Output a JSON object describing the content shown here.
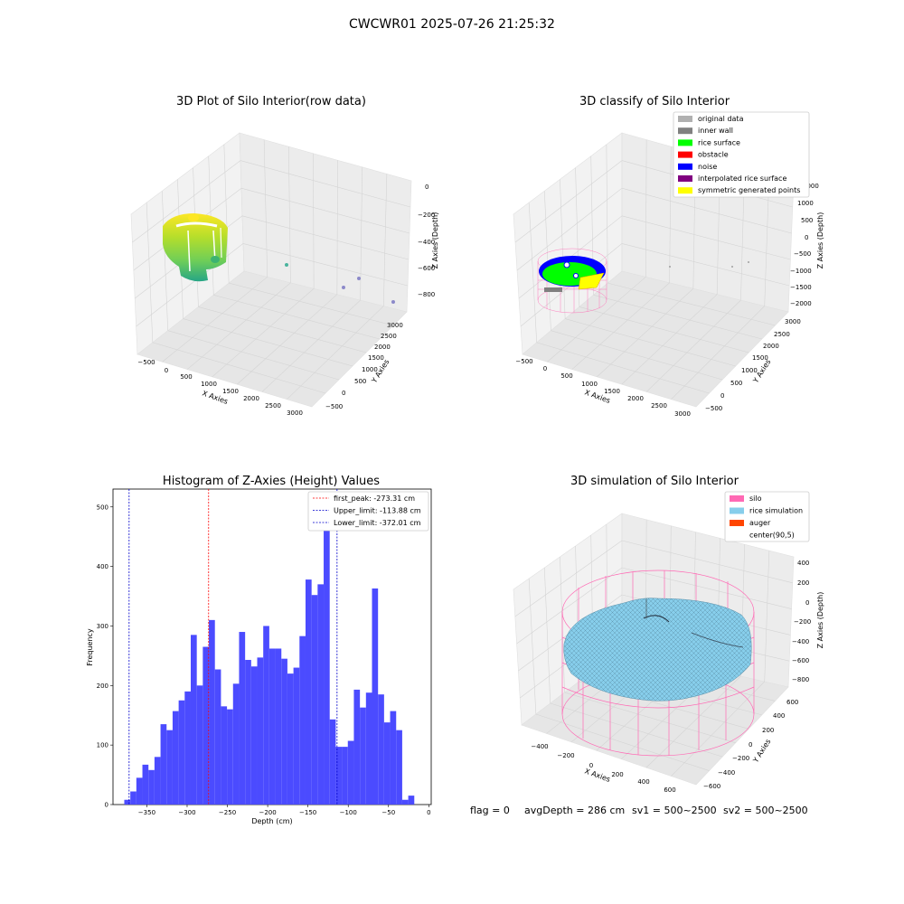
{
  "suptitle": "CWCWR01 2025-07-26 21:25:32",
  "footer": {
    "flag": "flag = 0",
    "avg": "avgDepth = 286 cm",
    "sv1": "sv1 = 500~2500",
    "sv2": "sv2 = 500~2500"
  },
  "colors": {
    "hist_bar": "#4b4bff",
    "first_peak": "#ff0000",
    "limit_lines": "#0000cc",
    "silo": "#ff69b4",
    "rice_simulation": "#87ceeb",
    "auger": "#ff4500",
    "rice_surface": "#00ff00",
    "noise": "#0000ff",
    "symmetric": "#ffff00",
    "pane": "#f2f2f2",
    "grid": "#dcdcdc"
  },
  "chart_data": [
    {
      "type": "scatter",
      "title": "3D Plot of Silo Interior(row data)",
      "xlabel": "X Axies",
      "ylabel": "Y Axies",
      "zlabel": "Z Axies (Depth)",
      "xticks": [
        "−500",
        "0",
        "500",
        "1000",
        "1500",
        "2000",
        "2500",
        "3000"
      ],
      "yticks": [
        "−500",
        "0",
        "500",
        "1000",
        "1500",
        "2000",
        "2500",
        "3000"
      ],
      "zticks": [
        "0",
        "−200",
        "−400",
        "−600",
        "−800"
      ],
      "outliers": [
        {
          "x": 1000,
          "y": 1200,
          "z": -580
        },
        {
          "x": 2300,
          "y": 2500,
          "z": -700
        },
        {
          "x": 2900,
          "y": 3000,
          "z": -860
        },
        {
          "x": 2200,
          "y": 2100,
          "z": -750
        }
      ]
    },
    {
      "type": "scatter",
      "title": "3D classify of Silo Interior",
      "xlabel": "X Axies",
      "ylabel": "Y Axies",
      "zlabel": "Z Axies (Depth)",
      "xticks": [
        "−500",
        "0",
        "500",
        "1000",
        "1500",
        "2000",
        "2500",
        "3000"
      ],
      "yticks": [
        "−500",
        "0",
        "500",
        "1000",
        "1500",
        "2000",
        "2500",
        "3000"
      ],
      "zticks": [
        "1000",
        "500",
        "0",
        "−500",
        "−1000",
        "−1500",
        "−2000"
      ],
      "legend": [
        {
          "label": "original data",
          "color": "#b0b0b0"
        },
        {
          "label": "inner wall",
          "color": "#808080"
        },
        {
          "label": "rice surface",
          "color": "#00ff00"
        },
        {
          "label": "obstacle",
          "color": "#ff0000"
        },
        {
          "label": "noise",
          "color": "#0000ff"
        },
        {
          "label": "interpolated rice surface",
          "color": "#800080"
        },
        {
          "label": "symmetric generated points",
          "color": "#ffff00"
        }
      ],
      "legend_loc": "upper right"
    },
    {
      "type": "bar",
      "title": "Histogram of Z-Axies (Height) Values",
      "xlabel": "Depth (cm)",
      "ylabel": "Frequency",
      "xlim": [
        -392,
        3
      ],
      "ylim": [
        0,
        530
      ],
      "xticks": [
        -350,
        -300,
        -250,
        -200,
        -150,
        -100,
        -50,
        0
      ],
      "yticks": [
        0,
        100,
        200,
        300,
        400,
        500
      ],
      "bin_width": 7.5,
      "bin_start": -378,
      "values": [
        8,
        22,
        45,
        67,
        58,
        80,
        135,
        125,
        157,
        175,
        190,
        285,
        200,
        265,
        310,
        227,
        165,
        160,
        203,
        290,
        243,
        232,
        247,
        300,
        262,
        262,
        245,
        220,
        230,
        283,
        378,
        352,
        370,
        505,
        143,
        97,
        97,
        107,
        193,
        163,
        188,
        363,
        185,
        138,
        157,
        125,
        8,
        15
      ],
      "vlines": [
        {
          "label": "first_peak: -273.31 cm",
          "x": -273.31,
          "color": "#ff0000"
        },
        {
          "label": "Upper_limit: -113.88 cm",
          "x": -113.88,
          "color": "#0000cc"
        },
        {
          "label": "Lower_limit: -372.01 cm",
          "x": -372.01,
          "color": "#0000cc"
        }
      ],
      "legend_loc": "upper right"
    },
    {
      "type": "area",
      "title": "3D simulation of Silo Interior",
      "xlabel": "X Axies",
      "ylabel": "Y Axies",
      "zlabel": "Z Axies (Depth)",
      "xticks": [
        "−400",
        "−200",
        "0",
        "200",
        "400",
        "600"
      ],
      "yticks": [
        "−600",
        "−400",
        "−200",
        "0",
        "200",
        "400",
        "600"
      ],
      "zticks": [
        "400",
        "200",
        "0",
        "−200",
        "−400",
        "−600",
        "−800"
      ],
      "legend": [
        {
          "label": "silo",
          "color": "#ff69b4"
        },
        {
          "label": "rice simulation",
          "color": "#87ceeb"
        },
        {
          "label": "auger",
          "color": "#ff4500"
        },
        {
          "label": "center(90,5)",
          "color": ""
        }
      ],
      "legend_loc": "upper right"
    }
  ]
}
